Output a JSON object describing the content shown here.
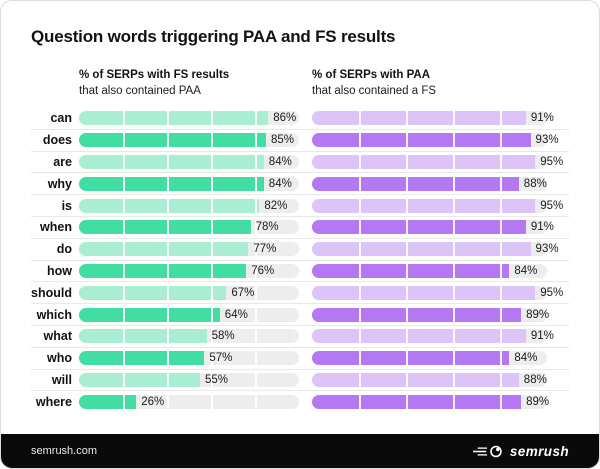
{
  "title": "Question words triggering PAA and FS results",
  "columns": [
    {
      "heading_bold": "% of SERPs with FS results",
      "heading_sub": "that also contained PAA"
    },
    {
      "heading_bold": "% of SERPs with PAA",
      "heading_sub": "that also contained a FS"
    }
  ],
  "rows": [
    {
      "label": "can",
      "fs": 86,
      "paa": 91
    },
    {
      "label": "does",
      "fs": 85,
      "paa": 93
    },
    {
      "label": "are",
      "fs": 84,
      "paa": 95
    },
    {
      "label": "why",
      "fs": 84,
      "paa": 88
    },
    {
      "label": "is",
      "fs": 82,
      "paa": 95
    },
    {
      "label": "when",
      "fs": 78,
      "paa": 91
    },
    {
      "label": "do",
      "fs": 77,
      "paa": 93
    },
    {
      "label": "how",
      "fs": 76,
      "paa": 84
    },
    {
      "label": "should",
      "fs": 67,
      "paa": 95
    },
    {
      "label": "which",
      "fs": 64,
      "paa": 89
    },
    {
      "label": "what",
      "fs": 58,
      "paa": 91
    },
    {
      "label": "who",
      "fs": 57,
      "paa": 84
    },
    {
      "label": "will",
      "fs": 55,
      "paa": 88
    },
    {
      "label": "where",
      "fs": 26,
      "paa": 89
    }
  ],
  "value_suffix": "%",
  "colors": {
    "green_light": "#a9eed3",
    "green_dark": "#41dda3",
    "purple_light": "#dcc3f8",
    "purple_dark": "#b478f2",
    "track": "#ededed",
    "footer_bg": "#0a0a0a"
  },
  "footer": {
    "site": "semrush.com",
    "brand": "semrush"
  },
  "chart_data": {
    "type": "bar",
    "orientation": "horizontal",
    "title": "Question words triggering PAA and FS results",
    "categories": [
      "can",
      "does",
      "are",
      "why",
      "is",
      "when",
      "do",
      "how",
      "should",
      "which",
      "what",
      "who",
      "will",
      "where"
    ],
    "series": [
      {
        "name": "% of SERPs with FS results that also contained PAA",
        "values": [
          86,
          85,
          84,
          84,
          82,
          78,
          77,
          76,
          67,
          64,
          58,
          57,
          55,
          26
        ]
      },
      {
        "name": "% of SERPs with PAA that also contained a FS",
        "values": [
          91,
          93,
          95,
          88,
          95,
          91,
          93,
          84,
          95,
          89,
          91,
          84,
          88,
          89
        ]
      }
    ],
    "unit": "%",
    "xlim": [
      0,
      100
    ],
    "grid": "segment dividers every 20%",
    "legend_position": "column headers above each bar group",
    "value_labels": "shown at end of each bar"
  }
}
